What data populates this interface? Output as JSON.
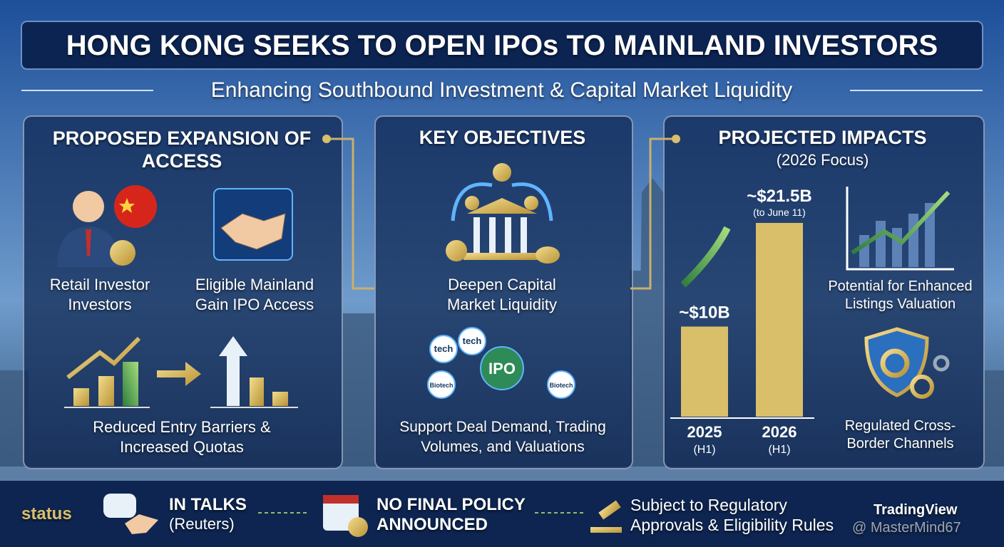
{
  "header": {
    "title": "HONG KONG SEEKS TO OPEN IPOs TO MAINLAND INVESTORS",
    "subtitle": "Enhancing Southbound Investment & Capital Market Liquidity"
  },
  "panels": [
    {
      "title": "PROPOSED EXPANSION OF ACCESS",
      "items": [
        "Retail Investor Investors",
        "Eligible Mainland Gain IPO Access",
        "Reduced Entry Barriers & Increased Quotas"
      ]
    },
    {
      "title": "KEY OBJECTIVES",
      "items": [
        "Deepen Capital Market Liquidity",
        "Support Deal Demand, Trading Volumes, and Valuations"
      ],
      "bubbles": [
        "IPO",
        "tech",
        "tech",
        "Biotech",
        "Biotech"
      ]
    },
    {
      "title": "PROJECTED IMPACTS",
      "subtitle": "(2026 Focus)",
      "items": [
        "Potential for Enhanced Listings Valuation",
        "Regulated Cross-Border Channels"
      ]
    }
  ],
  "chart_data": {
    "type": "bar",
    "categories": [
      "2025",
      "2026"
    ],
    "category_notes": [
      "(H1)",
      "(H1)"
    ],
    "values": [
      10,
      21.5
    ],
    "value_labels": [
      "~$10B",
      "~$21.5B"
    ],
    "value_notes": [
      null,
      "(to June 11)"
    ],
    "color": "#d9bf6a"
  },
  "status": {
    "label": "status",
    "steps": [
      {
        "title": "IN TALKS",
        "detail": "(Reuters)"
      },
      {
        "title": "NO FINAL POLICY ANNOUNCED"
      },
      {
        "title": "Subject to Regulatory Approvals & Eligibility Rules"
      }
    ]
  },
  "brand": "TradingView",
  "watermark": "@ MasterMind67"
}
